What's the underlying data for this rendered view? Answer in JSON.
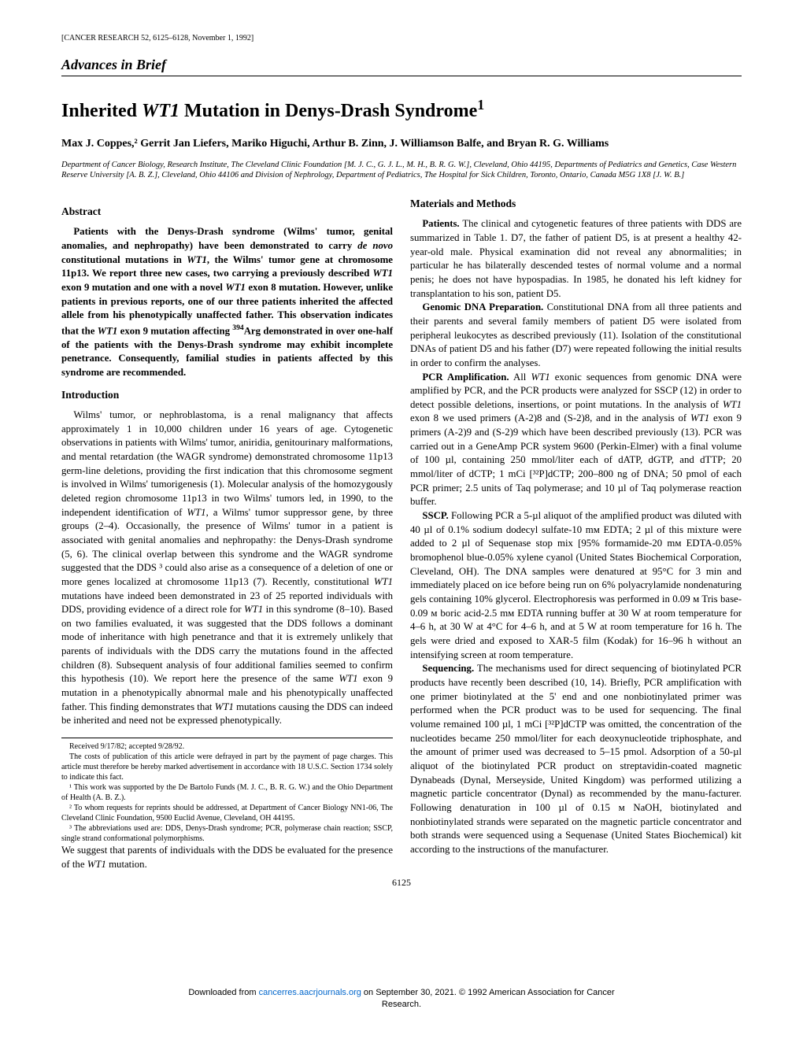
{
  "journal_ref": "[CANCER RESEARCH 52, 6125–6128, November 1, 1992]",
  "section_category": "Advances in Brief",
  "title_pre": "Inherited ",
  "title_ital": "WT1",
  "title_post": " Mutation in Denys-Drash Syndrome",
  "title_sup": "1",
  "authors": "Max J. Coppes,² Gerrit Jan Liefers, Mariko Higuchi, Arthur B. Zinn, J. Williamson Balfe, and Bryan R. G. Williams",
  "affiliations": "Department of Cancer Biology, Research Institute, The Cleveland Clinic Foundation [M. J. C., G. J. L., M. H., B. R. G. W.], Cleveland, Ohio 44195, Departments of Pediatrics and Genetics, Case Western Reserve University [A. B. Z.], Cleveland, Ohio 44106 and Division of Nephrology, Department of Pediatrics, The Hospital for Sick Children, Toronto, Ontario, Canada M5G 1X8 [J. W. B.]",
  "h_abstract": "Abstract",
  "abstract_p1a": "Patients with the Denys-Drash syndrome (Wilms' tumor, genital anomalies, and nephropathy) have been demonstrated to carry ",
  "abstract_p1b": "de novo",
  "abstract_p1c": " constitutional mutations in ",
  "abstract_p1d": "WT1",
  "abstract_p1e": ", the Wilms' tumor gene at chromosome 11p13. We report three new cases, two carrying a previously described ",
  "abstract_p1f": "WT1",
  "abstract_p1g": " exon 9 mutation and one with a novel ",
  "abstract_p1h": "WT1",
  "abstract_p1i": " exon 8 mutation. However, unlike patients in previous reports, one of our three patients inherited the affected allele from his phenotypically unaffected father. This observation indicates that the ",
  "abstract_p1j": "WT1",
  "abstract_p1k": " exon 9 mutation affecting ",
  "abstract_p1l": "394",
  "abstract_p1m": "Arg demonstrated in over one-half of the patients with the Denys-Drash syndrome may exhibit incomplete penetrance. Consequently, familial studies in patients affected by this syndrome are recommended.",
  "h_intro": "Introduction",
  "intro_p1": "Wilms' tumor, or nephroblastoma, is a renal malignancy that affects approximately 1 in 10,000 children under 16 years of age. Cytogenetic observations in patients with Wilms' tumor, aniridia, genitourinary malformations, and mental retardation (the WAGR syndrome) demonstrated chromosome 11p13 germ-line deletions, providing the first indication that this chromosome segment is involved in Wilms' tumorigenesis (1). Molecular analysis of the homozygously deleted region chromosome 11p13 in two Wilms' tumors led, in 1990, to the independent identification of ",
  "intro_p1b": "WT1",
  "intro_p1c": ", a Wilms' tumor suppressor gene, by three groups (2–4). Occasionally, the presence of Wilms' tumor in a patient is associated with genital anomalies and nephropathy: the Denys-Drash syndrome (5, 6). The clinical overlap between this syndrome and the WAGR syndrome suggested that the DDS ³ could also arise as a consequence of a deletion of one or more genes localized at chromosome 11p13 (7). Recently, constitutional ",
  "intro_p1d": "WT1",
  "intro_p1e": " mutations have indeed been demonstrated in 23 of 25 reported individuals with DDS, providing evidence of a direct role for ",
  "intro_p1f": "WT1",
  "intro_p1g": " in this syndrome (8–10). Based on two families evaluated, it was suggested that the DDS follows a dominant mode of inheritance with high penetrance and that it is extremely unlikely that parents of individuals with the DDS carry the mutations found in the affected children (8). Subsequent analysis of four additional families seemed to confirm this hypothesis (10). We report here the presence of the same ",
  "intro_p1h": "WT1",
  "intro_p1i": " exon 9 mutation in a phenotypically abnormal male and his phenotypically unaffected father. This finding demonstrates that ",
  "intro_p1j": "WT1",
  "intro_p1k": " mutations causing the DDS can indeed be inherited and need not be expressed phenotypically.",
  "col2_p1a": "We suggest that parents of individuals with the DDS be evaluated for the presence of the ",
  "col2_p1b": "WT1",
  "col2_p1c": " mutation.",
  "h_methods": "Materials and Methods",
  "meth_p1a": "Patients.",
  "meth_p1b": " The clinical and cytogenetic features of three patients with DDS are summarized in Table 1. D7, the father of patient D5, is at present a healthy 42-year-old male. Physical examination did not reveal any abnormalities; in particular he has bilaterally descended testes of normal volume and a normal penis; he does not have hypospadias. In 1985, he donated his left kidney for transplantation to his son, patient D5.",
  "meth_p2a": "Genomic DNA Preparation.",
  "meth_p2b": " Constitutional DNA from all three patients and their parents and several family members of patient D5 were isolated from peripheral leukocytes as described previously (11). Isolation of the constitutional DNAs of patient D5 and his father (D7) were repeated following the initial results in order to confirm the analyses.",
  "meth_p3a": "PCR Amplification.",
  "meth_p3b": " All ",
  "meth_p3c": "WT1",
  "meth_p3d": " exonic sequences from genomic DNA were amplified by PCR, and the PCR products were analyzed for SSCP (12) in order to detect possible deletions, insertions, or point mutations. In the analysis of ",
  "meth_p3e": "WT1",
  "meth_p3f": " exon 8 we used primers (A-2)8 and (S-2)8, and in the analysis of ",
  "meth_p3g": "WT1",
  "meth_p3h": " exon 9 primers (A-2)9 and (S-2)9 which have been described previously (13). PCR was carried out in a GeneAmp PCR system 9600 (Perkin-Elmer) with a final volume of 100 µl, containing 250 mmol/liter each of dATP, dGTP, and dTTP; 20 mmol/liter of dCTP; 1 mCi [³²P]dCTP; 200–800 ng of DNA; 50 pmol of each PCR primer; 2.5 units of Taq polymerase; and 10 µl of Taq polymerase reaction buffer.",
  "meth_p4a": "SSCP.",
  "meth_p4b": " Following PCR a 5-µl aliquot of the amplified product was diluted with 40 µl of 0.1% sodium dodecyl sulfate-10 mᴍ EDTA; 2 µl of this mixture were added to 2 µl of Sequenase stop mix [95% formamide-20 mᴍ EDTA-0.05% bromophenol blue-0.05% xylene cyanol (United States Biochemical Corporation, Cleveland, OH). The DNA samples were denatured at 95°C for 3 min and immediately placed on ice before being run on 6% polyacrylamide nondenaturing gels containing 10% glycerol. Electrophoresis was performed in 0.09 ᴍ Tris base-0.09 ᴍ boric acid-2.5 mᴍ EDTA running buffer at 30 W at room temperature for 4–6 h, at 30 W at 4°C for 4–6 h, and at 5 W at room temperature for 16 h. The gels were dried and exposed to XAR-5 film (Kodak) for 16–96 h without an intensifying screen at room temperature.",
  "meth_p5a": "Sequencing.",
  "meth_p5b": " The mechanisms used for direct sequencing of biotinylated PCR products have recently been described (10, 14). Briefly, PCR amplification with one primer biotinylated at the 5' end and one nonbiotinylated primer was performed when the PCR product was to be used for sequencing. The final volume remained 100 µl, 1 mCi [³²P]dCTP was omitted, the concentration of the nucleotides became 250 mmol/liter for each deoxynucleotide triphosphate, and the amount of primer used was decreased to 5–15 pmol. Adsorption of a 50-µl aliquot of the biotinylated PCR product on streptavidin-coated magnetic Dynabeads (Dynal, Merseyside, United Kingdom) was performed utilizing a magnetic particle concentrator (Dynal) as recommended by the manu-facturer. Following denaturation in 100 µl of 0.15 ᴍ NaOH, biotinylated and nonbiotinylated strands were separated on the magnetic particle concentrator and both strands were sequenced using a Sequenase (United States Biochemical) kit according to the instructions of the manufacturer.",
  "fn_received": "Received 9/17/82; accepted 9/28/92.",
  "fn_costs": "The costs of publication of this article were defrayed in part by the payment of page charges. This article must therefore be hereby marked advertisement in accordance with 18 U.S.C. Section 1734 solely to indicate this fact.",
  "fn1": "¹ This work was supported by the De Bartolo Funds (M. J. C., B. R. G. W.) and the Ohio Department of Health (A. B. Z.).",
  "fn2": "² To whom requests for reprints should be addressed, at Department of Cancer Biology NN1-06, The Cleveland Clinic Foundation, 9500 Euclid Avenue, Cleveland, OH 44195.",
  "fn3": "³ The abbreviations used are: DDS, Denys-Drash syndrome; PCR, polymerase chain reaction; SSCP, single strand conformational polymorphisms.",
  "page_number": "6125",
  "dl_pre": "Downloaded from ",
  "dl_link": "cancerres.aacrjournals.org",
  "dl_mid": " on September 30, 2021. © 1992 American Association for Cancer",
  "dl_post": "Research."
}
